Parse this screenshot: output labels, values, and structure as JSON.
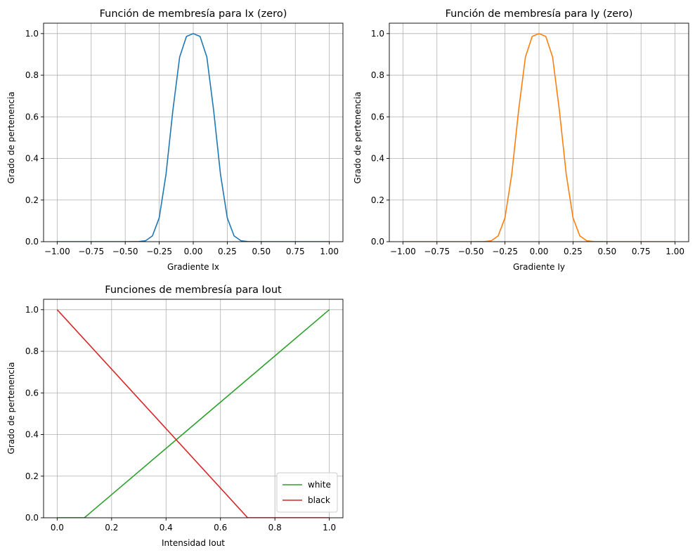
{
  "chart_data": [
    {
      "type": "line",
      "title": "Función de membresía para Ix (zero)",
      "xlabel": "Gradiente Ix",
      "ylabel": "Grado de pertenencia",
      "xlim": [
        -1.1,
        1.1
      ],
      "ylim": [
        0,
        1.05
      ],
      "xticks": [
        -1.0,
        -0.75,
        -0.5,
        -0.25,
        0.0,
        0.25,
        0.5,
        0.75,
        1.0
      ],
      "xtick_labels": [
        "−1.00",
        "−0.75",
        "−0.50",
        "−0.25",
        "0.00",
        "0.25",
        "0.50",
        "0.75",
        "1.00"
      ],
      "yticks": [
        0.0,
        0.2,
        0.4,
        0.6,
        0.8,
        1.0
      ],
      "ytick_labels": [
        "0.0",
        "0.2",
        "0.4",
        "0.6",
        "0.8",
        "1.0"
      ],
      "grid": true,
      "series": [
        {
          "name": "zero",
          "color": "#1f77b4",
          "x": [
            -1.0,
            -0.5,
            -0.4,
            -0.35,
            -0.3,
            -0.25,
            -0.2,
            -0.15,
            -0.1,
            -0.05,
            0.0,
            0.05,
            0.1,
            0.15,
            0.2,
            0.25,
            0.3,
            0.35,
            0.4,
            0.5,
            1.0
          ],
          "y": [
            0.0,
            0.0,
            0.0006,
            0.0046,
            0.0278,
            0.1146,
            0.3247,
            0.6297,
            0.8869,
            0.9864,
            1.0,
            0.9864,
            0.8869,
            0.6297,
            0.3247,
            0.1146,
            0.0278,
            0.0046,
            0.0006,
            0.0,
            0.0
          ]
        }
      ]
    },
    {
      "type": "line",
      "title": "Función de membresía para Iy (zero)",
      "xlabel": "Gradiente Iy",
      "ylabel": "Grado de pertenencia",
      "xlim": [
        -1.1,
        1.1
      ],
      "ylim": [
        0,
        1.05
      ],
      "xticks": [
        -1.0,
        -0.75,
        -0.5,
        -0.25,
        0.0,
        0.25,
        0.5,
        0.75,
        1.0
      ],
      "xtick_labels": [
        "−1.00",
        "−0.75",
        "−0.50",
        "−0.25",
        "0.00",
        "0.25",
        "0.50",
        "0.75",
        "1.00"
      ],
      "yticks": [
        0.0,
        0.2,
        0.4,
        0.6,
        0.8,
        1.0
      ],
      "ytick_labels": [
        "0.0",
        "0.2",
        "0.4",
        "0.6",
        "0.8",
        "1.0"
      ],
      "grid": true,
      "series": [
        {
          "name": "zero",
          "color": "#ff7f0e",
          "x": [
            -1.0,
            -0.5,
            -0.4,
            -0.35,
            -0.3,
            -0.25,
            -0.2,
            -0.15,
            -0.1,
            -0.05,
            0.0,
            0.05,
            0.1,
            0.15,
            0.2,
            0.25,
            0.3,
            0.35,
            0.4,
            0.5,
            1.0
          ],
          "y": [
            0.0,
            0.0,
            0.0006,
            0.0046,
            0.0278,
            0.1146,
            0.3247,
            0.6297,
            0.8869,
            0.9864,
            1.0,
            0.9864,
            0.8869,
            0.6297,
            0.3247,
            0.1146,
            0.0278,
            0.0046,
            0.0006,
            0.0,
            0.0
          ]
        }
      ]
    },
    {
      "type": "line",
      "title": "Funciones de membresía para Iout",
      "xlabel": "Intensidad Iout",
      "ylabel": "Grado de pertenencia",
      "xlim": [
        -0.05,
        1.05
      ],
      "ylim": [
        0,
        1.05
      ],
      "xticks": [
        0.0,
        0.2,
        0.4,
        0.6,
        0.8,
        1.0
      ],
      "xtick_labels": [
        "0.0",
        "0.2",
        "0.4",
        "0.6",
        "0.8",
        "1.0"
      ],
      "yticks": [
        0.0,
        0.2,
        0.4,
        0.6,
        0.8,
        1.0
      ],
      "ytick_labels": [
        "0.0",
        "0.2",
        "0.4",
        "0.6",
        "0.8",
        "1.0"
      ],
      "grid": true,
      "legend": "lower-right",
      "series": [
        {
          "name": "white",
          "color": "#2ca02c",
          "x": [
            0.0,
            0.1,
            1.0
          ],
          "y": [
            0.0,
            0.0,
            1.0
          ]
        },
        {
          "name": "black",
          "color": "#d62728",
          "x": [
            0.0,
            0.7,
            1.0
          ],
          "y": [
            1.0,
            0.0,
            0.0
          ]
        }
      ]
    }
  ]
}
